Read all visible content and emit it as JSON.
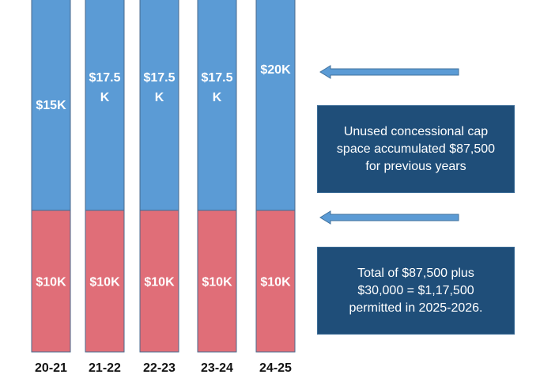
{
  "chart_data": {
    "type": "bar",
    "stacked": true,
    "categories": [
      "20-21",
      "21-22",
      "22-23",
      "23-24",
      "24-25"
    ],
    "ylim": [
      0,
      30
    ],
    "series": [
      {
        "values": [
          10,
          10,
          10,
          10,
          10
        ],
        "labels": [
          "$10K",
          "$10K",
          "$10K",
          "$10K",
          "$10K"
        ],
        "color": "#e06e78"
      },
      {
        "values": [
          15,
          17.5,
          17.5,
          17.5,
          20
        ],
        "labels": [
          [
            "$15K"
          ],
          [
            "$17.5",
            "K"
          ],
          [
            "$17.5",
            "K"
          ],
          [
            "$17.5",
            "K"
          ],
          [
            "$20K"
          ]
        ],
        "color": "#5b9bd5"
      }
    ],
    "grid": false
  },
  "annotations": {
    "arrow_color": "#5b9bd5",
    "box_color": "#1f4e79",
    "box_top": {
      "lines": [
        "Unused concessional cap",
        "space accumulated $87,500",
        "for previous years"
      ]
    },
    "box_bottom": {
      "lines": [
        "Total of $87,500 plus",
        "$30,000 = $1,17,500",
        "permitted in 2025-2026."
      ]
    }
  }
}
